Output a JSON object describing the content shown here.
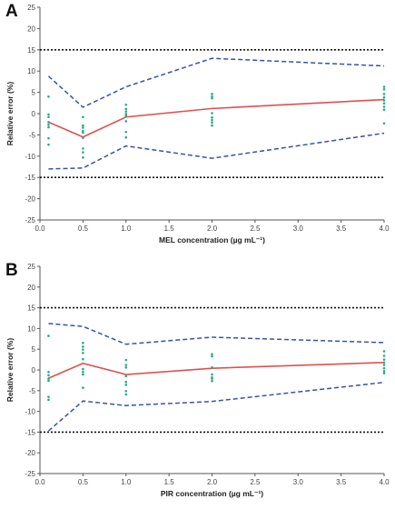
{
  "chart_data": [
    {
      "type": "line",
      "panel_label": "A",
      "title": "",
      "xlabel": "MEL concentration (µg mL⁻¹)",
      "ylabel": "Relative error (%)",
      "xlim": [
        0,
        4.0
      ],
      "ylim": [
        -25,
        25
      ],
      "x_ticks": [
        0.0,
        0.5,
        1.0,
        1.5,
        2.0,
        2.5,
        3.0,
        3.5,
        4.0
      ],
      "x_tick_labels": [
        "0.0",
        "0.5",
        "1.0",
        "1.5",
        "2.0",
        "2.5",
        "3.0",
        "3.5",
        "4.0"
      ],
      "y_ticks": [
        25,
        20,
        15,
        10,
        5,
        0,
        -5,
        -10,
        -15,
        -20,
        -25
      ],
      "y_tick_labels": [
        "25",
        "20",
        "15",
        "10",
        "5",
        "0",
        "-5",
        "-10",
        "-15",
        "-20",
        "-25"
      ],
      "grid": false,
      "legend": "none",
      "x": [
        0.1,
        0.5,
        1.0,
        2.0,
        4.0
      ],
      "series": [
        {
          "style": "solid",
          "color": "#e05050",
          "values": [
            -2.0,
            -5.5,
            -0.8,
            1.2,
            3.3
          ]
        },
        {
          "style": "dashed",
          "color": "#3a4fb0",
          "values": [
            8.8,
            1.5,
            6.3,
            13.0,
            11.2
          ]
        },
        {
          "style": "dashed",
          "color": "#3a4fb0",
          "values": [
            -13.0,
            -12.8,
            -7.6,
            -10.5,
            -4.6
          ]
        },
        {
          "style": "dotted",
          "color": "#111111",
          "values": [
            15,
            15,
            15,
            15,
            15
          ]
        },
        {
          "style": "dotted",
          "color": "#111111",
          "values": [
            -15,
            -15,
            -15,
            -15,
            -15
          ]
        }
      ],
      "points": {
        "color": "#2aa88a",
        "x": [
          0.1,
          0.1,
          0.1,
          0.1,
          0.1,
          0.1,
          0.1,
          0.1,
          0.5,
          0.5,
          0.5,
          0.5,
          0.5,
          0.5,
          0.5,
          0.5,
          0.5,
          1.0,
          1.0,
          1.0,
          1.0,
          1.0,
          1.0,
          1.0,
          1.0,
          2.0,
          2.0,
          2.0,
          2.0,
          2.0,
          2.0,
          2.0,
          2.0,
          4.0,
          4.0,
          4.0,
          4.0,
          4.0,
          4.0,
          4.0,
          4.0,
          4.0
        ],
        "y": [
          4.0,
          -0.2,
          -0.8,
          -2.0,
          -2.6,
          -3.2,
          -5.8,
          -7.3,
          -0.8,
          -2.8,
          -3.3,
          -4.1,
          -4.5,
          -5.7,
          -8.2,
          -9.1,
          -10.3,
          2.1,
          1.1,
          0.5,
          -0.1,
          -0.5,
          -1.8,
          -4.3,
          -5.6,
          4.6,
          4.0,
          3.6,
          0.1,
          -0.9,
          -1.5,
          -2.1,
          -2.8,
          6.3,
          5.7,
          4.6,
          3.8,
          3.1,
          2.4,
          1.6,
          0.9,
          -2.3
        ]
      }
    },
    {
      "type": "line",
      "panel_label": "B",
      "title": "",
      "xlabel": "PIR concentration (µg mL⁻¹)",
      "ylabel": "Relative error (%)",
      "xlim": [
        0,
        4.0
      ],
      "ylim": [
        -25,
        25
      ],
      "x_ticks": [
        0.0,
        0.5,
        1.0,
        1.5,
        2.0,
        2.5,
        3.0,
        3.5,
        4.0
      ],
      "x_tick_labels": [
        "0.0",
        "0.5",
        "1.0",
        "1.5",
        "2.0",
        "2.5",
        "3.0",
        "3.5",
        "4.0"
      ],
      "y_ticks": [
        25,
        20,
        15,
        10,
        5,
        0,
        -5,
        -10,
        -15,
        -20,
        -25
      ],
      "y_tick_labels": [
        "25",
        "20",
        "15",
        "10",
        "5",
        "0",
        "-5",
        "-10",
        "-15",
        "-20",
        "-25"
      ],
      "grid": false,
      "legend": "none",
      "x": [
        0.1,
        0.5,
        1.0,
        2.0,
        4.0
      ],
      "series": [
        {
          "style": "solid",
          "color": "#e05050",
          "values": [
            -2.0,
            1.6,
            -1.1,
            0.4,
            1.8
          ]
        },
        {
          "style": "dashed",
          "color": "#3a4fb0",
          "values": [
            11.2,
            10.5,
            6.2,
            7.9,
            6.6
          ]
        },
        {
          "style": "dashed",
          "color": "#3a4fb0",
          "values": [
            -14.7,
            -7.5,
            -8.6,
            -7.6,
            -3.0
          ]
        },
        {
          "style": "dotted",
          "color": "#111111",
          "values": [
            15,
            15,
            15,
            15,
            15
          ]
        },
        {
          "style": "dotted",
          "color": "#111111",
          "values": [
            -15,
            -15,
            -15,
            -15,
            -15
          ]
        }
      ],
      "points": {
        "color": "#2aa88a",
        "x": [
          0.1,
          0.1,
          0.1,
          0.1,
          0.1,
          0.1,
          0.1,
          0.5,
          0.5,
          0.5,
          0.5,
          0.5,
          0.5,
          0.5,
          0.5,
          0.5,
          1.0,
          1.0,
          1.0,
          1.0,
          1.0,
          1.0,
          1.0,
          1.0,
          2.0,
          2.0,
          2.0,
          2.0,
          2.0,
          2.0,
          2.0,
          4.0,
          4.0,
          4.0,
          4.0,
          4.0,
          4.0,
          4.0,
          4.0
        ],
        "y": [
          8.2,
          -0.5,
          -1.3,
          -2.1,
          -2.6,
          -6.5,
          -7.2,
          6.5,
          5.6,
          4.9,
          4.1,
          2.6,
          0.2,
          -0.5,
          -1.1,
          -4.3,
          2.4,
          1.2,
          0.6,
          -1.5,
          -2.9,
          -3.6,
          -5.1,
          -5.9,
          3.8,
          3.3,
          0.6,
          -1.1,
          -1.8,
          -2.1,
          -2.7,
          4.5,
          3.4,
          2.5,
          1.8,
          1.2,
          0.4,
          -0.3,
          -0.8
        ]
      }
    }
  ]
}
